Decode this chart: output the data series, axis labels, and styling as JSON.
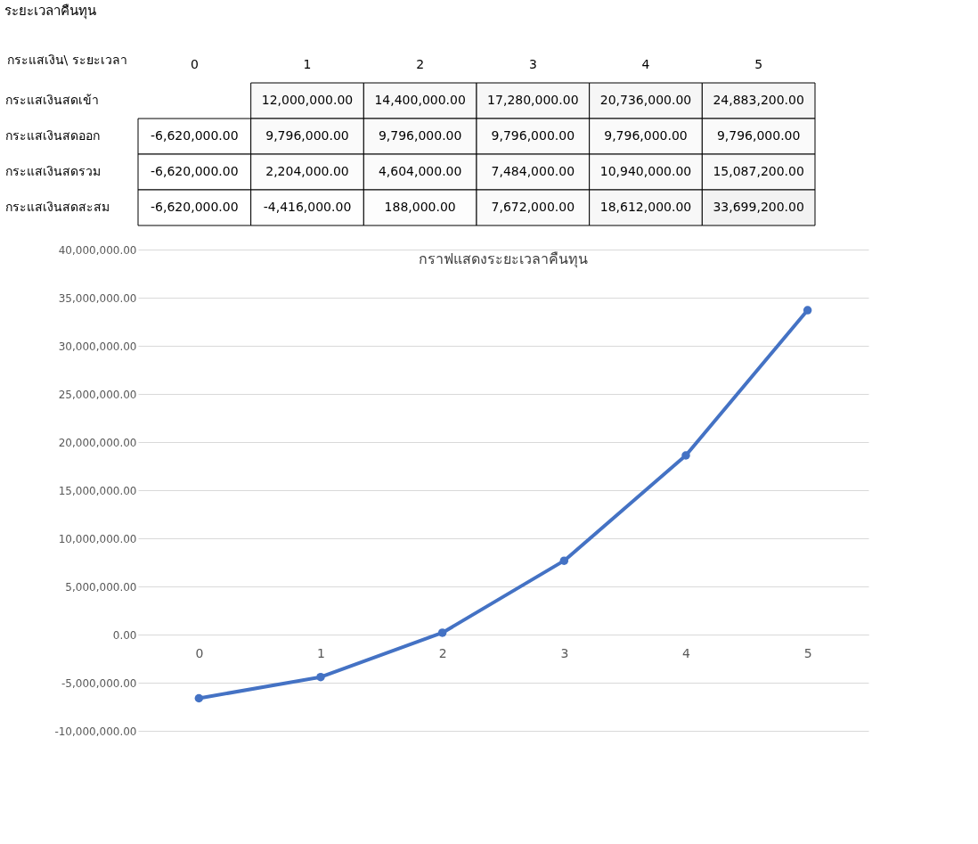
{
  "chart_data": [
    {
      "type": "heatmap",
      "title": "ระยะเวลาคืนทุน",
      "ylabel": "กระแสเงิน\\ ระยะเวลา",
      "categories": [
        "0",
        "1",
        "2",
        "3",
        "4",
        "5"
      ],
      "y_categories": [
        "กระแสเงินสดเข้า",
        "กระแสเงินสดออก",
        "กระแสเงินสดรวม",
        "กระแสเงินสดสะสม"
      ],
      "cells": [
        [
          null,
          12000000,
          14400000,
          17280000,
          20736000,
          24883200
        ],
        [
          -6620000,
          9796000,
          9796000,
          9796000,
          9796000,
          9796000
        ],
        [
          -6620000,
          2204000,
          4604000,
          7484000,
          10940000,
          15087200
        ],
        [
          -6620000,
          -4416000,
          188000,
          7672000,
          18612000,
          33699200
        ]
      ],
      "cell_labels": [
        [
          null,
          "12,000,000.00",
          "14,400,000.00",
          "17,280,000.00",
          "20,736,000.00",
          "24,883,200.00"
        ],
        [
          "-6,620,000.00",
          "9,796,000.00",
          "9,796,000.00",
          "9,796,000.00",
          "9,796,000.00",
          "9,796,000.00"
        ],
        [
          "-6,620,000.00",
          "2,204,000.00",
          "4,604,000.00",
          "7,484,000.00",
          "10,940,000.00",
          "15,087,200.00"
        ],
        [
          "-6,620,000.00",
          "-4,416,000.00",
          "188,000.00",
          "7,672,000.00",
          "18,612,000.00",
          "33,699,200.00"
        ]
      ]
    },
    {
      "type": "line",
      "title": "กราฟแสดงระยะเวลาคืนทุน",
      "categories": [
        "0",
        "1",
        "2",
        "3",
        "4",
        "5"
      ],
      "series": [
        {
          "color": "#4472c4",
          "values": [
            -6620000,
            -4416000,
            188000,
            7672000,
            18612000,
            33699200
          ]
        }
      ],
      "ylim": [
        -10000000,
        40000000
      ],
      "yticks": [
        {
          "value": -10000000,
          "label": "-10,000,000.00"
        },
        {
          "value": -5000000,
          "label": "-5,000,000.00"
        },
        {
          "value": 0,
          "label": "0.00"
        },
        {
          "value": 5000000,
          "label": "5,000,000.00"
        },
        {
          "value": 10000000,
          "label": "10,000,000.00"
        },
        {
          "value": 15000000,
          "label": "15,000,000.00"
        },
        {
          "value": 20000000,
          "label": "20,000,000.00"
        },
        {
          "value": 25000000,
          "label": "25,000,000.00"
        },
        {
          "value": 30000000,
          "label": "30,000,000.00"
        },
        {
          "value": 35000000,
          "label": "35,000,000.00"
        },
        {
          "value": 40000000,
          "label": "40,000,000.00"
        }
      ],
      "grid": "y",
      "legend": false,
      "marker": "circle",
      "line_style": "solid"
    }
  ]
}
